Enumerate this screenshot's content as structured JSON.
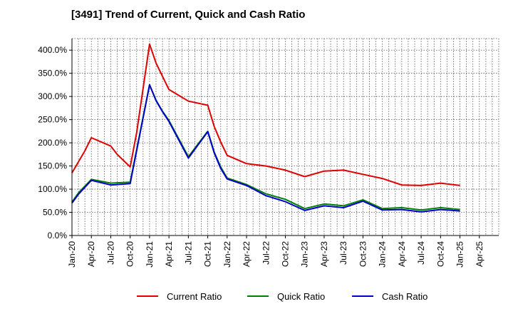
{
  "chart_data": {
    "type": "line",
    "title": "[3491]  Trend of Current, Quick and Cash Ratio",
    "xlabel": "",
    "ylabel": "",
    "ylim": [
      0,
      425
    ],
    "y_ticks": [
      "0.0%",
      "50.0%",
      "100.0%",
      "150.0%",
      "200.0%",
      "250.0%",
      "300.0%",
      "350.0%",
      "400.0%"
    ],
    "x_ticks": [
      "Jan-20",
      "Apr-20",
      "Jul-20",
      "Oct-20",
      "Jan-21",
      "Apr-21",
      "Jul-21",
      "Oct-21",
      "Jan-22",
      "Apr-22",
      "Jul-22",
      "Oct-22",
      "Jan-23",
      "Apr-23",
      "Jul-23",
      "Oct-23",
      "Jan-24",
      "Apr-24",
      "Jul-24",
      "Oct-24",
      "Jan-25",
      "Apr-25"
    ],
    "x_range_months": [
      0,
      66
    ],
    "grid": true,
    "legend_position": "bottom",
    "series": [
      {
        "name": "Current Ratio",
        "color": "#e00000",
        "x": [
          0,
          2,
          3,
          6,
          7,
          9,
          10,
          12,
          13,
          15,
          18,
          21,
          22,
          23,
          24,
          27,
          30,
          33,
          36,
          39,
          42,
          45,
          48,
          51,
          54,
          57,
          60
        ],
        "values": [
          135,
          183,
          211,
          193,
          175,
          148,
          222,
          413,
          372,
          315,
          290,
          281,
          235,
          202,
          173,
          155,
          150,
          141,
          127,
          139,
          141,
          132,
          123,
          109,
          108,
          113,
          108
        ]
      },
      {
        "name": "Quick Ratio",
        "color": "#008000",
        "x": [
          0,
          1,
          3,
          6,
          9,
          12,
          13,
          14,
          15,
          18,
          21,
          22,
          23,
          24,
          27,
          30,
          33,
          36,
          39,
          42,
          45,
          48,
          51,
          54,
          57,
          60
        ],
        "values": [
          72,
          92,
          121,
          113,
          115,
          325,
          292,
          268,
          248,
          170,
          225,
          180,
          148,
          124,
          110,
          90,
          78,
          58,
          68,
          64,
          77,
          58,
          60,
          55,
          60,
          56
        ]
      },
      {
        "name": "Cash Ratio",
        "color": "#0000cc",
        "x": [
          0,
          1,
          3,
          6,
          9,
          12,
          13,
          14,
          15,
          18,
          21,
          22,
          23,
          24,
          27,
          30,
          33,
          36,
          39,
          42,
          45,
          48,
          51,
          54,
          57,
          60
        ],
        "values": [
          70,
          89,
          119,
          109,
          112,
          325,
          291,
          267,
          246,
          167,
          224,
          178,
          145,
          122,
          108,
          86,
          73,
          54,
          64,
          60,
          74,
          55,
          56,
          51,
          56,
          53
        ]
      }
    ]
  }
}
